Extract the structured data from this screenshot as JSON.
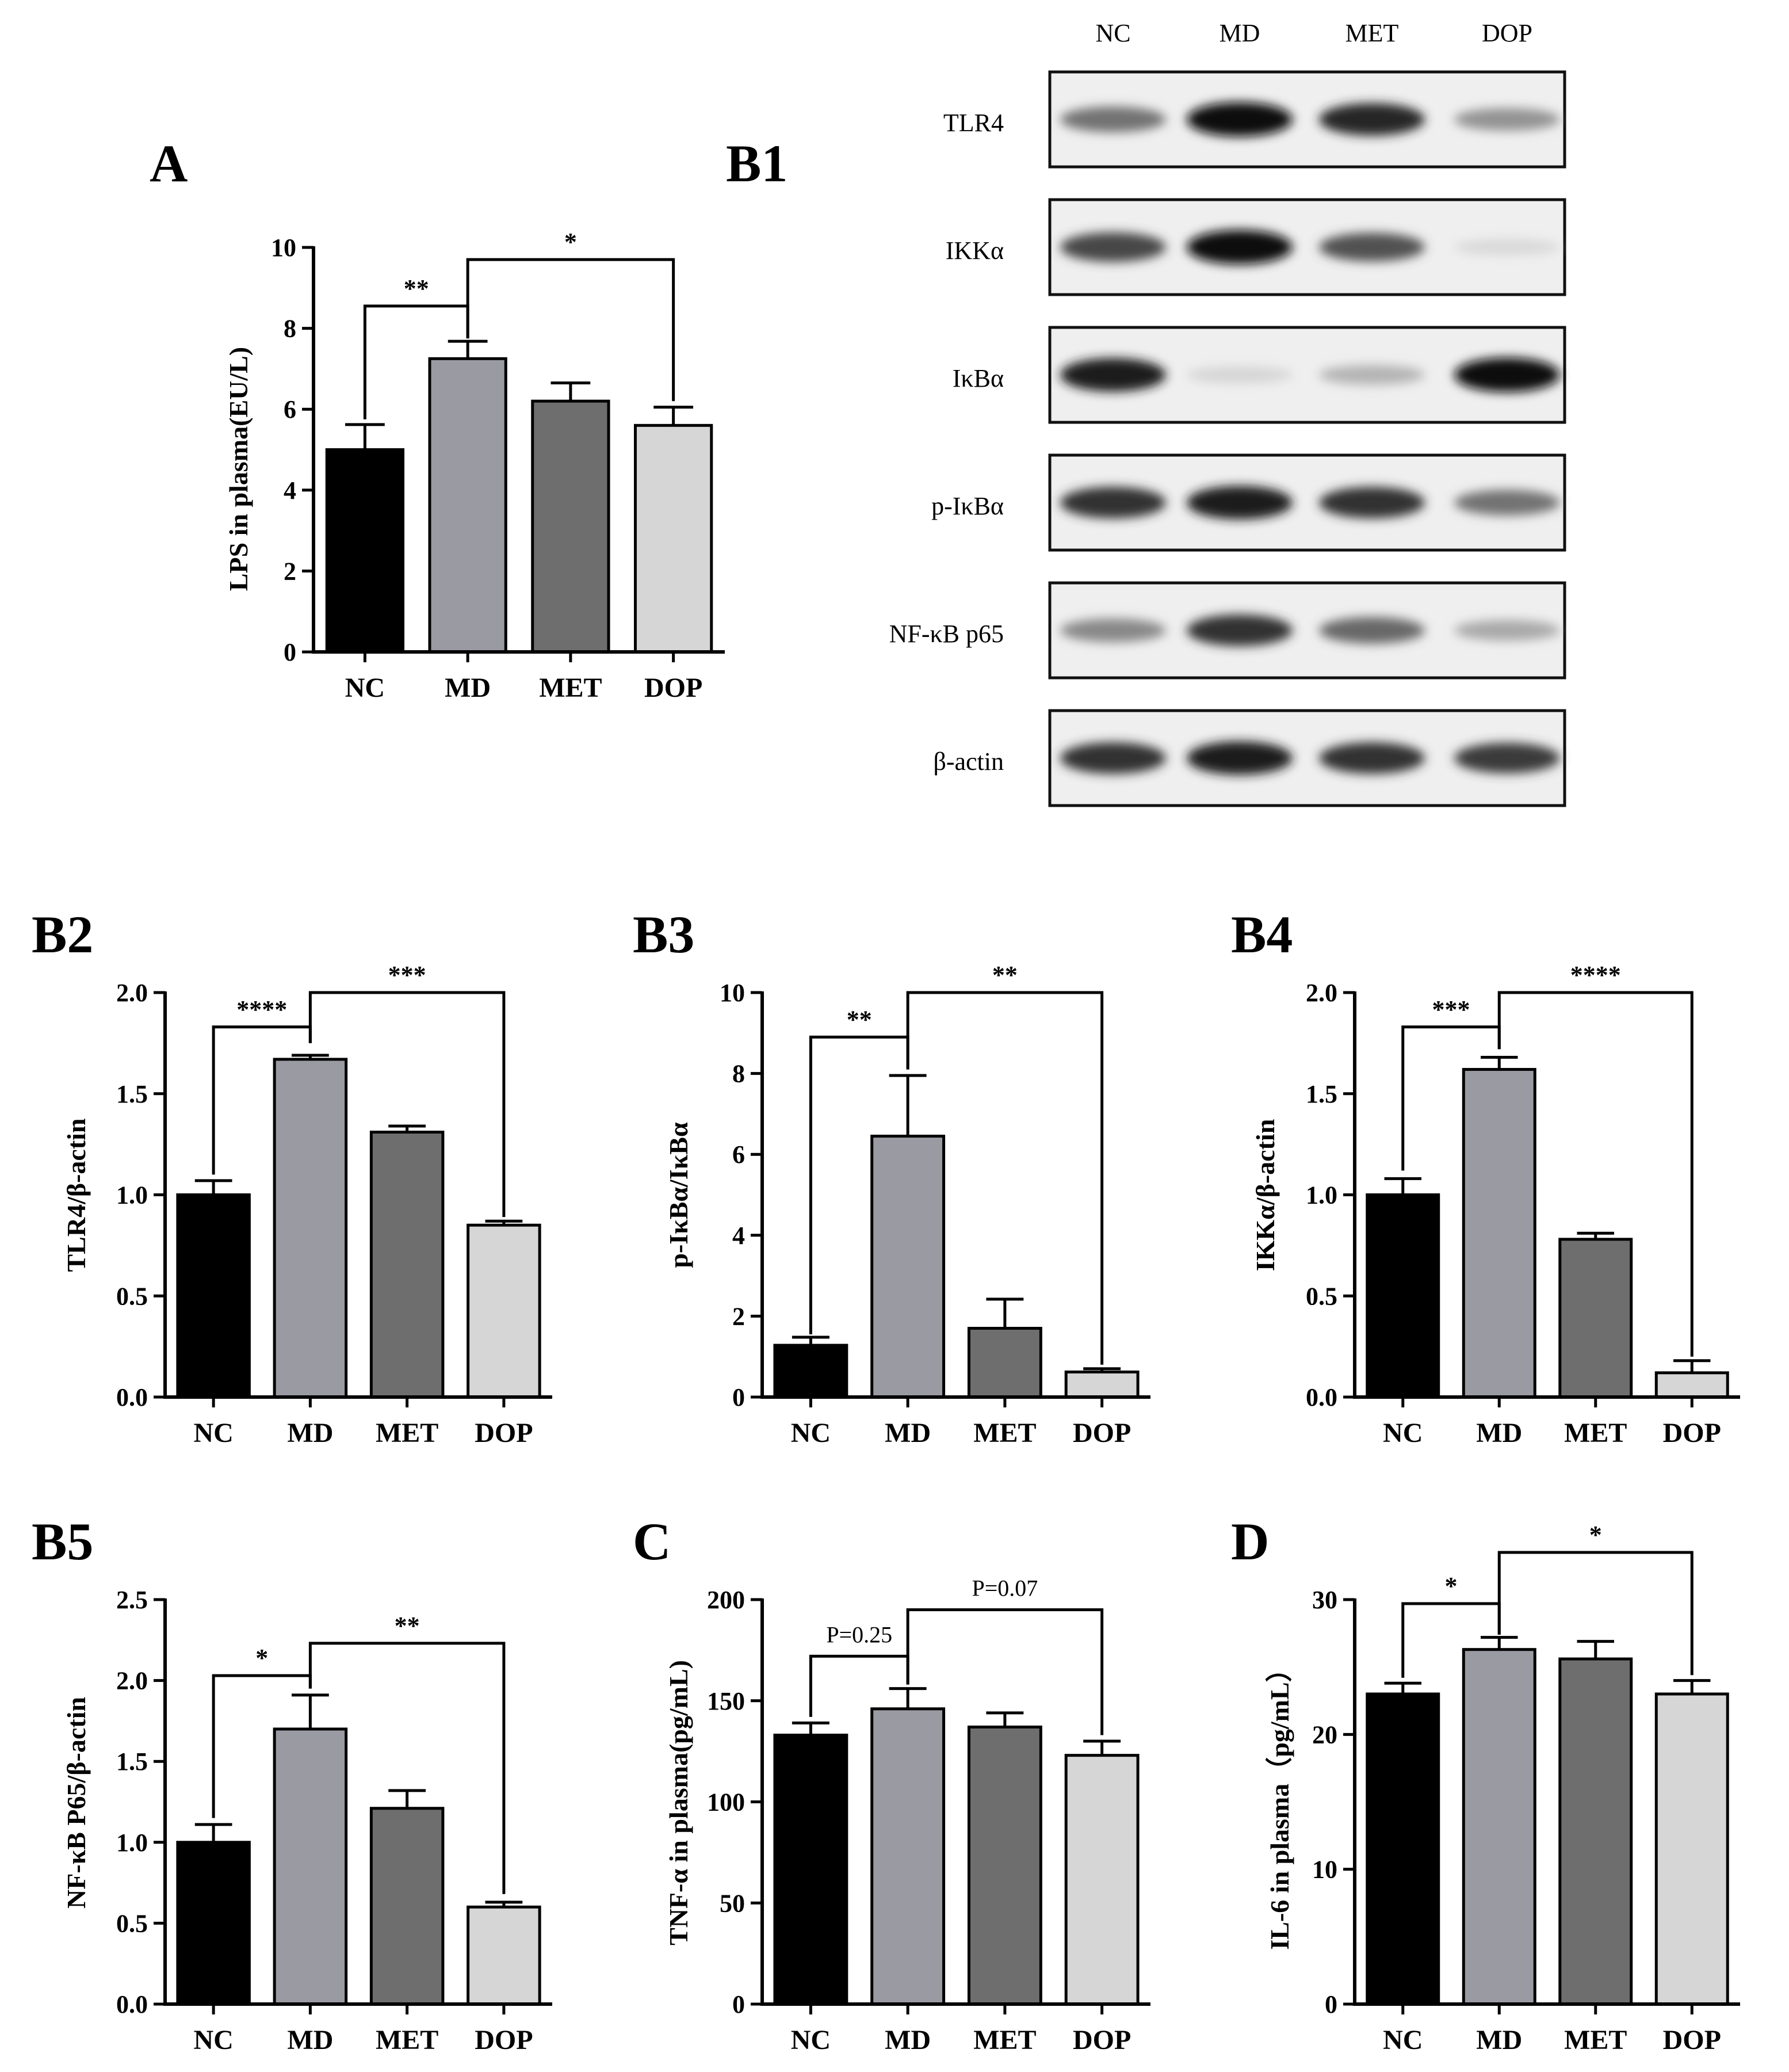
{
  "panels": [
    {
      "id": "A",
      "label": "A",
      "ylabel": "LPS in plasma(EU/L)",
      "ylim": [
        0,
        10
      ],
      "yticks": [
        "0",
        "2",
        "4",
        "6",
        "8",
        "10"
      ],
      "ytick_values": [
        0,
        2,
        4,
        6,
        8,
        10
      ]
    },
    {
      "id": "B2",
      "label": "B2",
      "ylabel": "TLR4/β-actin",
      "ylim": [
        0,
        2.0
      ],
      "yticks": [
        "0.0",
        "0.5",
        "1.0",
        "1.5",
        "2.0"
      ],
      "ytick_values": [
        0,
        0.5,
        1.0,
        1.5,
        2.0
      ]
    },
    {
      "id": "B3",
      "label": "B3",
      "ylabel": "p-IκBα/IκBα",
      "ylim": [
        0,
        10
      ],
      "yticks": [
        "0",
        "2",
        "4",
        "6",
        "8",
        "10"
      ],
      "ytick_values": [
        0,
        2,
        4,
        6,
        8,
        10
      ]
    },
    {
      "id": "B4",
      "label": "B4",
      "ylabel": "IKKα/β-actin",
      "ylim": [
        0,
        2.0
      ],
      "yticks": [
        "0.0",
        "0.5",
        "1.0",
        "1.5",
        "2.0"
      ],
      "ytick_values": [
        0,
        0.5,
        1.0,
        1.5,
        2.0
      ]
    },
    {
      "id": "B5",
      "label": "B5",
      "ylabel": "NF-κB P65/β-actin",
      "ylim": [
        0,
        2.5
      ],
      "yticks": [
        "0.0",
        "0.5",
        "1.0",
        "1.5",
        "2.0",
        "2.5"
      ],
      "ytick_values": [
        0,
        0.5,
        1.0,
        1.5,
        2.0,
        2.5
      ]
    },
    {
      "id": "C",
      "label": "C",
      "ylabel": "TNF-α in plasma(pg/mL)",
      "ylim": [
        0,
        200
      ],
      "yticks": [
        "0",
        "50",
        "100",
        "150",
        "200"
      ],
      "ytick_values": [
        0,
        50,
        100,
        150,
        200
      ]
    },
    {
      "id": "D",
      "label": "D",
      "ylabel": "IL-6 in plasma（pg/mL）",
      "ylim": [
        0,
        30
      ],
      "yticks": [
        "0",
        "10",
        "20",
        "30"
      ],
      "ytick_values": [
        0,
        10,
        20,
        30
      ]
    }
  ],
  "blot": {
    "label": "B1",
    "lanes": [
      "NC",
      "MD",
      "MET",
      "DOP"
    ],
    "rows": [
      "TLR4",
      "IKKα",
      "IκBα",
      "p-IκBα",
      "NF-κB p65",
      "β-actin"
    ],
    "band_intensity": [
      [
        0.55,
        1.0,
        0.9,
        0.4
      ],
      [
        0.75,
        1.0,
        0.7,
        0.08
      ],
      [
        0.95,
        0.1,
        0.25,
        1.0
      ],
      [
        0.85,
        0.95,
        0.85,
        0.55
      ],
      [
        0.45,
        0.85,
        0.6,
        0.3
      ],
      [
        0.85,
        0.95,
        0.85,
        0.8
      ]
    ]
  },
  "colors": {
    "NC": "#000000",
    "MD": "#9a9aa2",
    "MET": "#6e6e6e",
    "DOP": "#d6d6d6"
  },
  "chart_data": [
    {
      "type": "bar",
      "panel": "A",
      "title": "",
      "xlabel": "",
      "ylabel": "LPS in plasma(EU/L)",
      "ylim": [
        0,
        10
      ],
      "categories": [
        "NC",
        "MD",
        "MET",
        "DOP"
      ],
      "values": [
        5.0,
        7.25,
        6.2,
        5.6
      ],
      "errors": [
        0.62,
        0.43,
        0.45,
        0.45
      ],
      "annotations": [
        {
          "from": 0,
          "to": 1,
          "text": "**",
          "level": 8.55,
          "top_from": 5.75,
          "top_to": 7.75
        },
        {
          "from": 1,
          "to": 3,
          "text": "*",
          "level": 9.7,
          "top_from": 7.75,
          "top_to": 6.2
        }
      ]
    },
    {
      "type": "bar",
      "panel": "B2",
      "title": "",
      "xlabel": "",
      "ylabel": "TLR4/β-actin",
      "ylim": [
        0,
        2.0
      ],
      "categories": [
        "NC",
        "MD",
        "MET",
        "DOP"
      ],
      "values": [
        1.0,
        1.67,
        1.31,
        0.85
      ],
      "errors": [
        0.07,
        0.02,
        0.03,
        0.02
      ],
      "annotations": [
        {
          "from": 0,
          "to": 1,
          "text": "****",
          "level": 1.83,
          "top_from": 1.1,
          "top_to": 1.75
        },
        {
          "from": 1,
          "to": 3,
          "text": "***",
          "level": 2.0,
          "top_from": 1.75,
          "top_to": 0.89
        }
      ]
    },
    {
      "type": "bar",
      "panel": "B3",
      "title": "",
      "xlabel": "",
      "ylabel": "p-IκBα/IκBα",
      "ylim": [
        0,
        10
      ],
      "categories": [
        "NC",
        "MD",
        "MET",
        "DOP"
      ],
      "values": [
        1.28,
        6.45,
        1.7,
        0.62
      ],
      "errors": [
        0.2,
        1.5,
        0.72,
        0.08
      ],
      "annotations": [
        {
          "from": 0,
          "to": 1,
          "text": "**",
          "level": 8.9,
          "top_from": 1.55,
          "top_to": 8.1
        },
        {
          "from": 1,
          "to": 3,
          "text": "**",
          "level": 10.0,
          "top_from": 8.1,
          "top_to": 0.8
        }
      ]
    },
    {
      "type": "bar",
      "panel": "B4",
      "title": "",
      "xlabel": "",
      "ylabel": "IKKα/β-actin",
      "ylim": [
        0,
        2.0
      ],
      "categories": [
        "NC",
        "MD",
        "MET",
        "DOP"
      ],
      "values": [
        1.0,
        1.62,
        0.78,
        0.12
      ],
      "errors": [
        0.08,
        0.06,
        0.03,
        0.06
      ],
      "annotations": [
        {
          "from": 0,
          "to": 1,
          "text": "***",
          "level": 1.83,
          "top_from": 1.12,
          "top_to": 1.72
        },
        {
          "from": 1,
          "to": 3,
          "text": "****",
          "level": 2.0,
          "top_from": 1.72,
          "top_to": 0.2
        }
      ]
    },
    {
      "type": "bar",
      "panel": "B5",
      "title": "",
      "xlabel": "",
      "ylabel": "NF-κB P65/β-actin",
      "ylim": [
        0,
        2.5
      ],
      "categories": [
        "NC",
        "MD",
        "MET",
        "DOP"
      ],
      "values": [
        1.0,
        1.7,
        1.21,
        0.6
      ],
      "errors": [
        0.11,
        0.21,
        0.11,
        0.03
      ],
      "annotations": [
        {
          "from": 0,
          "to": 1,
          "text": "*",
          "level": 2.03,
          "top_from": 1.15,
          "top_to": 1.95
        },
        {
          "from": 1,
          "to": 3,
          "text": "**",
          "level": 2.23,
          "top_from": 1.95,
          "top_to": 0.68
        }
      ]
    },
    {
      "type": "bar",
      "panel": "C",
      "title": "",
      "xlabel": "",
      "ylabel": "TNF-α in plasma(pg/mL)",
      "ylim": [
        0,
        200
      ],
      "categories": [
        "NC",
        "MD",
        "MET",
        "DOP"
      ],
      "values": [
        133,
        146,
        137,
        123
      ],
      "errors": [
        6,
        10,
        7,
        7
      ],
      "annotations": [
        {
          "from": 0,
          "to": 1,
          "text": "P=0.25",
          "level": 172,
          "top_from": 142,
          "top_to": 158
        },
        {
          "from": 1,
          "to": 3,
          "text": "P=0.07",
          "level": 195,
          "top_from": 158,
          "top_to": 133
        }
      ]
    },
    {
      "type": "bar",
      "panel": "D",
      "title": "",
      "xlabel": "",
      "ylabel": "IL-6 in plasma（pg/mL）",
      "ylim": [
        0,
        30
      ],
      "categories": [
        "NC",
        "MD",
        "MET",
        "DOP"
      ],
      "values": [
        23.0,
        26.3,
        25.6,
        23.0
      ],
      "errors": [
        0.8,
        0.9,
        1.3,
        1.0
      ],
      "annotations": [
        {
          "from": 0,
          "to": 1,
          "text": "*",
          "level": 29.7,
          "top_from": 24.2,
          "top_to": 27.4
        },
        {
          "from": 1,
          "to": 3,
          "text": "*",
          "level": 33.5,
          "top_from": 27.4,
          "top_to": 24.4
        }
      ]
    }
  ]
}
